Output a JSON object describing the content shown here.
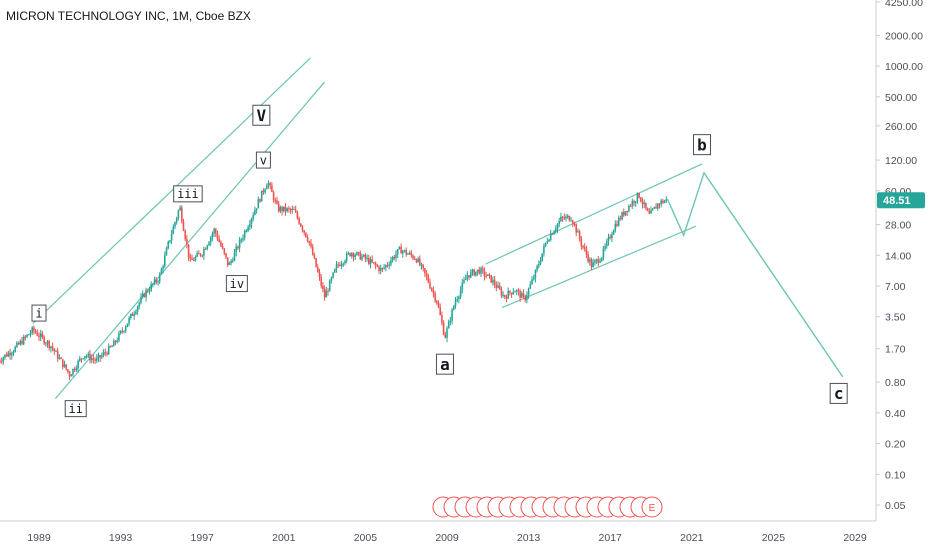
{
  "header": {
    "title": "MICRON TECHNOLOGY INC, 1M, Cboe BZX"
  },
  "colors": {
    "up": "#26a69a",
    "down": "#ef5350",
    "channel": "#6cc5b0",
    "accent": "#26a69a"
  },
  "chart_data": {
    "type": "candlestick",
    "title": "MICRON TECHNOLOGY INC, 1M, Cboe BZX",
    "y_scale": "log",
    "y_ticks": [
      "4250.00",
      "2000.00",
      "1000.00",
      "500.00",
      "260.00",
      "120.00",
      "60.00",
      "28.00",
      "14.00",
      "7.00",
      "3.50",
      "1.70",
      "0.80",
      "0.40",
      "0.20",
      "0.10",
      "0.05"
    ],
    "x_ticks": [
      "1989",
      "1993",
      "1997",
      "2001",
      "2005",
      "2009",
      "2013",
      "2017",
      "2021",
      "2025",
      "2029"
    ],
    "last_price": "48.51",
    "price_path": [
      [
        1987.0,
        1.3
      ],
      [
        1987.8,
        1.7
      ],
      [
        1988.7,
        2.6
      ],
      [
        1989.6,
        1.8
      ],
      [
        1990.5,
        0.95
      ],
      [
        1991.2,
        1.5
      ],
      [
        1991.8,
        1.3
      ],
      [
        1992.6,
        1.8
      ],
      [
        1993.3,
        3.0
      ],
      [
        1994.2,
        6.0
      ],
      [
        1994.9,
        8.5
      ],
      [
        1995.4,
        20
      ],
      [
        1995.9,
        42
      ],
      [
        1996.4,
        12
      ],
      [
        1997.0,
        15
      ],
      [
        1997.6,
        25
      ],
      [
        1998.3,
        11
      ],
      [
        1999.0,
        22
      ],
      [
        1999.6,
        40
      ],
      [
        2000.2,
        75
      ],
      [
        2000.7,
        40
      ],
      [
        2001.5,
        38
      ],
      [
        2002.2,
        20
      ],
      [
        2003.0,
        5.5
      ],
      [
        2003.6,
        11
      ],
      [
        2004.3,
        15
      ],
      [
        2005.0,
        13
      ],
      [
        2005.8,
        10
      ],
      [
        2006.7,
        16
      ],
      [
        2007.5,
        13
      ],
      [
        2008.0,
        8.5
      ],
      [
        2008.5,
        5
      ],
      [
        2008.9,
        2.2
      ],
      [
        2009.4,
        5
      ],
      [
        2010.0,
        9
      ],
      [
        2010.6,
        10
      ],
      [
        2011.2,
        8
      ],
      [
        2011.8,
        5.5
      ],
      [
        2012.3,
        6.5
      ],
      [
        2012.8,
        5.2
      ],
      [
        2013.3,
        9
      ],
      [
        2013.9,
        20
      ],
      [
        2014.6,
        32
      ],
      [
        2015.1,
        33
      ],
      [
        2015.6,
        18
      ],
      [
        2016.1,
        11
      ],
      [
        2016.6,
        14
      ],
      [
        2017.2,
        27
      ],
      [
        2017.8,
        40
      ],
      [
        2018.4,
        55
      ],
      [
        2018.9,
        34
      ],
      [
        2019.4,
        46
      ],
      [
        2019.8,
        48.51
      ]
    ],
    "wave_labels": [
      {
        "text": "i",
        "x": 1989.0,
        "y": 3.8,
        "boxed": true
      },
      {
        "text": "ii",
        "x": 1990.8,
        "y": 0.44,
        "boxed": true
      },
      {
        "text": "iii",
        "x": 1996.3,
        "y": 56,
        "boxed": true
      },
      {
        "text": "iv",
        "x": 1998.7,
        "y": 7.4,
        "boxed": true
      },
      {
        "text": "v",
        "x": 2000.0,
        "y": 120,
        "boxed": true
      },
      {
        "text": "V",
        "x": 1999.9,
        "y": 330,
        "boxed": true
      },
      {
        "text": "a",
        "x": 2008.9,
        "y": 1.2,
        "boxed": true
      },
      {
        "text": "b",
        "x": 2021.5,
        "y": 170,
        "boxed": true
      },
      {
        "text": "c",
        "x": 2028.2,
        "y": 0.62,
        "boxed": true
      }
    ],
    "channels": [
      {
        "from": [
          1988.7,
          3.0
        ],
        "to": [
          2002.3,
          1200
        ]
      },
      {
        "from": [
          1989.8,
          0.55
        ],
        "to": [
          2003.0,
          700
        ]
      },
      {
        "from": [
          2010.9,
          11.5
        ],
        "to": [
          2021.5,
          110
        ]
      },
      {
        "from": [
          2011.7,
          4.3
        ],
        "to": [
          2021.2,
          27
        ]
      }
    ],
    "projection": [
      [
        2019.8,
        50
      ],
      [
        2020.6,
        22
      ],
      [
        2021.6,
        90
      ],
      [
        2028.4,
        0.9
      ]
    ],
    "events_marker": "E"
  }
}
